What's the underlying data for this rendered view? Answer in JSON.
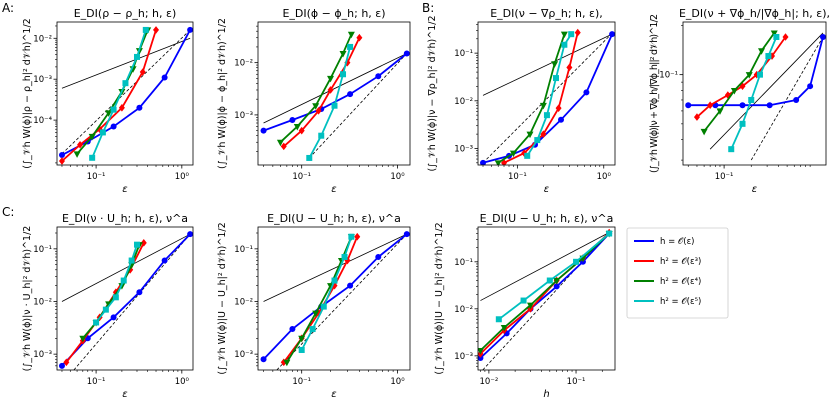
{
  "figure": {
    "section_labels": [
      "A:",
      "B:",
      "C:"
    ],
    "legend": [
      {
        "label": "h = 𝒪(ε)",
        "color": "#0000ff",
        "marker": "circle"
      },
      {
        "label": "h² = 𝒪(ε³)",
        "color": "#ff0000",
        "marker": "diamond"
      },
      {
        "label": "h² = 𝒪(ε⁴)",
        "color": "#008000",
        "marker": "triangle-down"
      },
      {
        "label": "h² = 𝒪(ε⁵)",
        "color": "#00c0c0",
        "marker": "square"
      }
    ]
  },
  "chart_data": [
    {
      "type": "line",
      "title": "E_DI(ρ − ρ_h; h, ε)",
      "xlabel": "ε",
      "ylabel": "(∫_𝒱h W(ϕ)|ρ − ρ_h|² d𝒱h)^1/2",
      "xscale": "log",
      "yscale": "log",
      "xlim": [
        0.035,
        1.35
      ],
      "ylim": [
        8e-06,
        0.025
      ],
      "xticks": [
        {
          "v": 0.1,
          "t": "10⁻¹"
        },
        {
          "v": 1,
          "t": "10⁰"
        }
      ],
      "yticks": [
        {
          "v": 0.0001,
          "t": "10⁻⁴"
        },
        {
          "v": 0.001,
          "t": "10⁻³"
        },
        {
          "v": 0.01,
          "t": "10⁻²"
        }
      ],
      "series": [
        {
          "name": "h = 𝒪(ε)",
          "x": [
            0.04,
            0.08,
            0.16,
            0.32,
            0.63,
            1.25
          ],
          "y": [
            1.4e-05,
            3e-05,
            7e-05,
            0.0002,
            0.0011,
            0.016
          ]
        },
        {
          "name": "h² = 𝒪(ε³)",
          "x": [
            0.04,
            0.065,
            0.11,
            0.2,
            0.35,
            0.5
          ],
          "y": [
            1e-05,
            2.5e-05,
            6e-05,
            0.0002,
            0.0015,
            0.016
          ]
        },
        {
          "name": "h² = 𝒪(ε⁴)",
          "x": [
            0.06,
            0.09,
            0.14,
            0.2,
            0.27,
            0.32,
            0.4
          ],
          "y": [
            1.5e-05,
            4e-05,
            0.00015,
            0.0005,
            0.0018,
            0.005,
            0.016
          ]
        },
        {
          "name": "h² = 𝒪(ε⁵)",
          "x": [
            0.09,
            0.12,
            0.16,
            0.22,
            0.3,
            0.38
          ],
          "y": [
            1.2e-05,
            5e-05,
            0.00018,
            0.0008,
            0.0035,
            0.016
          ]
        }
      ],
      "reference_lines": [
        {
          "style": "solid",
          "x": [
            0.04,
            1.25
          ],
          "y": [
            0.0006,
            0.01
          ]
        },
        {
          "style": "dashed",
          "x": [
            0.04,
            1.25
          ],
          "y": [
            1.5e-05,
            0.016
          ]
        }
      ]
    },
    {
      "type": "line",
      "title": "E_DI(ϕ − ϕ_h; h, ε)",
      "xlabel": "ε",
      "ylabel": "(∫_𝒱h W(ϕ)|ϕ − ϕ_h|² d𝒱h)^1/2",
      "xscale": "log",
      "yscale": "log",
      "xlim": [
        0.035,
        1.35
      ],
      "ylim": [
        0.00011,
        0.06
      ],
      "xticks": [
        {
          "v": 0.1,
          "t": "10⁻¹"
        },
        {
          "v": 1,
          "t": "10⁰"
        }
      ],
      "yticks": [
        {
          "v": 0.001,
          "t": "10⁻³"
        },
        {
          "v": 0.01,
          "t": "10⁻²"
        }
      ],
      "series": [
        {
          "name": "h = 𝒪(ε)",
          "x": [
            0.04,
            0.08,
            0.16,
            0.32,
            0.63,
            1.25
          ],
          "y": [
            0.0005,
            0.0008,
            0.0013,
            0.0025,
            0.0055,
            0.015
          ]
        },
        {
          "name": "h² = 𝒪(ε³)",
          "x": [
            0.065,
            0.1,
            0.15,
            0.2,
            0.3,
            0.4
          ],
          "y": [
            0.00025,
            0.0005,
            0.0012,
            0.003,
            0.01,
            0.03
          ]
        },
        {
          "name": "h² = 𝒪(ε⁴)",
          "x": [
            0.06,
            0.09,
            0.14,
            0.2,
            0.27,
            0.33
          ],
          "y": [
            0.0003,
            0.0006,
            0.0015,
            0.005,
            0.015,
            0.035
          ]
        },
        {
          "name": "h² = 𝒪(ε⁵)",
          "x": [
            0.12,
            0.16,
            0.22,
            0.27,
            0.32
          ],
          "y": [
            0.00015,
            0.0004,
            0.0015,
            0.006,
            0.02
          ]
        }
      ],
      "reference_lines": [
        {
          "style": "solid",
          "x": [
            0.04,
            1.25
          ],
          "y": [
            0.0007,
            0.015
          ]
        },
        {
          "style": "dashed",
          "x": [
            0.12,
            1.25
          ],
          "y": [
            0.00015,
            0.015
          ]
        }
      ]
    },
    {
      "type": "line",
      "title": "E_DI(ν − ∇ρ_h; h, ε),",
      "xlabel": "ε",
      "ylabel": "(∫_𝒱h W(ϕ)|ν − ∇ρ_h|² d𝒱h)^1/2",
      "xscale": "log",
      "yscale": "log",
      "xlim": [
        0.035,
        1.35
      ],
      "ylim": [
        0.00045,
        0.45
      ],
      "xticks": [
        {
          "v": 0.1,
          "t": "10⁻¹"
        },
        {
          "v": 1,
          "t": "10⁰"
        }
      ],
      "yticks": [
        {
          "v": 0.001,
          "t": "10⁻³"
        },
        {
          "v": 0.01,
          "t": "10⁻²"
        },
        {
          "v": 0.1,
          "t": "10⁻¹"
        }
      ],
      "series": [
        {
          "name": "h = 𝒪(ε)",
          "x": [
            0.04,
            0.08,
            0.16,
            0.32,
            0.63,
            1.25
          ],
          "y": [
            0.0005,
            0.0007,
            0.0012,
            0.004,
            0.015,
            0.25
          ]
        },
        {
          "name": "h² = 𝒪(ε³)",
          "x": [
            0.07,
            0.12,
            0.2,
            0.3,
            0.4,
            0.5
          ],
          "y": [
            0.0005,
            0.0008,
            0.002,
            0.007,
            0.05,
            0.27
          ]
        },
        {
          "name": "h² = 𝒪(ε⁴)",
          "x": [
            0.06,
            0.09,
            0.14,
            0.2,
            0.27,
            0.35
          ],
          "y": [
            0.0005,
            0.0008,
            0.002,
            0.008,
            0.06,
            0.25
          ]
        },
        {
          "name": "h² = 𝒪(ε⁵)",
          "x": [
            0.13,
            0.17,
            0.22,
            0.28,
            0.35,
            0.42
          ],
          "y": [
            0.0007,
            0.0015,
            0.005,
            0.03,
            0.15,
            0.25
          ]
        }
      ],
      "reference_lines": [
        {
          "style": "solid",
          "x": [
            0.04,
            1.25
          ],
          "y": [
            0.013,
            0.25
          ]
        },
        {
          "style": "dashed",
          "x": [
            0.04,
            1.25
          ],
          "y": [
            0.0005,
            0.26
          ]
        }
      ]
    },
    {
      "type": "line",
      "title": "E_DI(ν + ∇ϕ_h/|∇ϕ_h|; h, ε),",
      "xlabel": "ε",
      "ylabel": "(∫_𝒱h W(ϕ)|ν + ∇ϕ_h/|∇ϕ_h||² d𝒱h)^1/2",
      "xscale": "log",
      "yscale": "log",
      "xlim": [
        0.035,
        1.35
      ],
      "ylim": [
        0.028,
        0.21
      ],
      "xticks": [
        {
          "v": 0.1,
          "t": "10⁻¹"
        }
      ],
      "yticks": [
        {
          "v": 0.1,
          "t": "10⁻¹"
        }
      ],
      "series": [
        {
          "name": "h = 𝒪(ε)",
          "x": [
            0.04,
            0.08,
            0.16,
            0.32,
            0.63,
            0.9,
            1.25
          ],
          "y": [
            0.065,
            0.065,
            0.065,
            0.065,
            0.07,
            0.085,
            0.17
          ]
        },
        {
          "name": "h² = 𝒪(ε³)",
          "x": [
            0.05,
            0.07,
            0.11,
            0.16,
            0.23,
            0.34,
            0.48
          ],
          "y": [
            0.055,
            0.065,
            0.075,
            0.085,
            0.1,
            0.13,
            0.17
          ]
        },
        {
          "name": "h² = 𝒪(ε⁴)",
          "x": [
            0.06,
            0.09,
            0.13,
            0.19,
            0.26,
            0.36
          ],
          "y": [
            0.045,
            0.06,
            0.08,
            0.1,
            0.14,
            0.18
          ]
        },
        {
          "name": "h² = 𝒪(ε⁵)",
          "x": [
            0.12,
            0.16,
            0.2,
            0.25,
            0.31,
            0.38
          ],
          "y": [
            0.035,
            0.05,
            0.07,
            0.1,
            0.13,
            0.17
          ]
        }
      ],
      "reference_lines": [
        {
          "style": "solid",
          "x": [
            0.07,
            1.25
          ],
          "y": [
            0.035,
            0.18
          ]
        },
        {
          "style": "dashed",
          "x": [
            0.2,
            1.25
          ],
          "y": [
            0.03,
            0.17
          ]
        }
      ]
    },
    {
      "type": "line",
      "title": "E_DI(ν · U_h; h, ε), ν^a",
      "xlabel": "ε",
      "ylabel": "(∫_𝒱h W(ϕ)|ν · U_h|² d𝒱h)^1/2",
      "xscale": "log",
      "yscale": "log",
      "xlim": [
        0.035,
        1.35
      ],
      "ylim": [
        0.0005,
        0.26
      ],
      "xticks": [
        {
          "v": 0.1,
          "t": "10⁻¹"
        },
        {
          "v": 1,
          "t": "10⁰"
        }
      ],
      "yticks": [
        {
          "v": 0.001,
          "t": "10⁻³"
        },
        {
          "v": 0.01,
          "t": "10⁻²"
        },
        {
          "v": 0.1,
          "t": "10⁻¹"
        }
      ],
      "series": [
        {
          "name": "h = 𝒪(ε)",
          "x": [
            0.04,
            0.08,
            0.16,
            0.32,
            0.63,
            1.25
          ],
          "y": [
            0.0006,
            0.002,
            0.005,
            0.015,
            0.06,
            0.19
          ]
        },
        {
          "name": "h² = 𝒪(ε³)",
          "x": [
            0.045,
            0.07,
            0.11,
            0.17,
            0.25,
            0.36
          ],
          "y": [
            0.0007,
            0.0018,
            0.005,
            0.015,
            0.04,
            0.13
          ]
        },
        {
          "name": "h² = 𝒪(ε⁴)",
          "x": [
            0.07,
            0.1,
            0.14,
            0.2,
            0.26,
            0.32
          ],
          "y": [
            0.002,
            0.004,
            0.009,
            0.02,
            0.05,
            0.12
          ]
        },
        {
          "name": "h² = 𝒪(ε⁵)",
          "x": [
            0.1,
            0.13,
            0.17,
            0.21,
            0.26,
            0.3
          ],
          "y": [
            0.004,
            0.007,
            0.012,
            0.025,
            0.06,
            0.12
          ]
        }
      ],
      "reference_lines": [
        {
          "style": "solid",
          "x": [
            0.04,
            1.25
          ],
          "y": [
            0.01,
            0.19
          ]
        },
        {
          "style": "dashed",
          "x": [
            0.055,
            1.25
          ],
          "y": [
            0.0005,
            0.19
          ]
        }
      ]
    },
    {
      "type": "line",
      "title": "E_DI(U − U_h; h, ε), ν^a",
      "xlabel": "ε",
      "ylabel": "(∫_𝒱h W(ϕ)|U − U_h|² d𝒱h)^1/2",
      "xscale": "log",
      "yscale": "log",
      "xlim": [
        0.035,
        1.35
      ],
      "ylim": [
        0.0005,
        0.26
      ],
      "xticks": [
        {
          "v": 0.1,
          "t": "10⁻¹"
        },
        {
          "v": 1,
          "t": "10⁰"
        }
      ],
      "yticks": [
        {
          "v": 0.001,
          "t": "10⁻³"
        },
        {
          "v": 0.01,
          "t": "10⁻²"
        },
        {
          "v": 0.1,
          "t": "10⁻¹"
        }
      ],
      "series": [
        {
          "name": "h = 𝒪(ε)",
          "x": [
            0.04,
            0.08,
            0.16,
            0.32,
            0.63,
            1.25
          ],
          "y": [
            0.0008,
            0.003,
            0.008,
            0.02,
            0.07,
            0.19
          ]
        },
        {
          "name": "h² = 𝒪(ε³)",
          "x": [
            0.065,
            0.1,
            0.15,
            0.22,
            0.3,
            0.38
          ],
          "y": [
            0.0007,
            0.002,
            0.006,
            0.02,
            0.06,
            0.17
          ]
        },
        {
          "name": "h² = 𝒪(ε⁴)",
          "x": [
            0.07,
            0.1,
            0.14,
            0.2,
            0.26,
            0.33
          ],
          "y": [
            0.0007,
            0.002,
            0.006,
            0.02,
            0.06,
            0.17
          ]
        },
        {
          "name": "h² = 𝒪(ε⁵)",
          "x": [
            0.1,
            0.13,
            0.17,
            0.22,
            0.28,
            0.33
          ],
          "y": [
            0.0012,
            0.003,
            0.008,
            0.025,
            0.07,
            0.17
          ]
        }
      ],
      "reference_lines": [
        {
          "style": "solid",
          "x": [
            0.04,
            1.25
          ],
          "y": [
            0.01,
            0.19
          ]
        },
        {
          "style": "dashed",
          "x": [
            0.055,
            1.25
          ],
          "y": [
            0.0005,
            0.19
          ]
        }
      ]
    },
    {
      "type": "line",
      "title": "E_DI(U − U_h; h, ε), ν^a",
      "xlabel": "h",
      "ylabel": "(∫_𝒱h W(ϕ)|U − U_h|² d𝒱h)^1/2",
      "xscale": "log",
      "yscale": "log",
      "xlim": [
        0.0075,
        0.28
      ],
      "ylim": [
        0.0005,
        0.55
      ],
      "xticks": [
        {
          "v": 0.01,
          "t": "10⁻²"
        },
        {
          "v": 0.1,
          "t": "10⁻¹"
        }
      ],
      "yticks": [
        {
          "v": 0.001,
          "t": "10⁻³"
        },
        {
          "v": 0.01,
          "t": "10⁻²"
        },
        {
          "v": 0.1,
          "t": "10⁻¹"
        }
      ],
      "series": [
        {
          "name": "h = 𝒪(ε)",
          "x": [
            0.008,
            0.016,
            0.03,
            0.06,
            0.12,
            0.24
          ],
          "y": [
            0.0009,
            0.003,
            0.01,
            0.03,
            0.1,
            0.4
          ]
        },
        {
          "name": "h² = 𝒪(ε³)",
          "x": [
            0.008,
            0.015,
            0.03,
            0.06,
            0.12,
            0.24
          ],
          "y": [
            0.0011,
            0.0035,
            0.01,
            0.04,
            0.12,
            0.42
          ]
        },
        {
          "name": "h² = 𝒪(ε⁴)",
          "x": [
            0.008,
            0.015,
            0.03,
            0.06,
            0.12,
            0.24
          ],
          "y": [
            0.0013,
            0.004,
            0.012,
            0.04,
            0.12,
            0.4
          ]
        },
        {
          "name": "h² = 𝒪(ε⁵)",
          "x": [
            0.013,
            0.025,
            0.05,
            0.1,
            0.24
          ],
          "y": [
            0.006,
            0.015,
            0.04,
            0.1,
            0.4
          ]
        }
      ],
      "reference_lines": [
        {
          "style": "solid",
          "x": [
            0.008,
            0.24
          ],
          "y": [
            0.015,
            0.42
          ]
        },
        {
          "style": "dashed",
          "x": [
            0.0085,
            0.24
          ],
          "y": [
            0.0005,
            0.42
          ]
        }
      ]
    }
  ]
}
